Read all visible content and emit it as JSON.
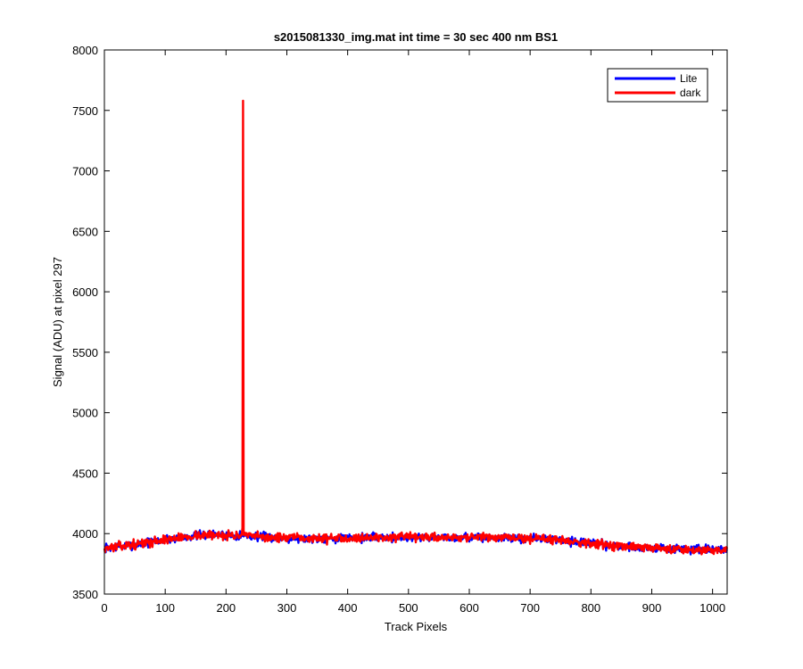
{
  "chart_data": {
    "type": "line",
    "title": "s2015081330_img.mat int time = 30 sec  400 nm BS1",
    "xlabel": "Track Pixels",
    "ylabel": "Signal (ADU) at pixel 297",
    "xlim": [
      0,
      1024
    ],
    "ylim": [
      3500,
      8000
    ],
    "xticks": [
      0,
      100,
      200,
      300,
      400,
      500,
      600,
      700,
      800,
      900,
      1000
    ],
    "yticks": [
      3500,
      4000,
      4500,
      5000,
      5500,
      6000,
      6500,
      7000,
      7500,
      8000
    ],
    "grid": false,
    "legend_position": "top-right",
    "baseline": {
      "x": [
        0,
        50,
        100,
        150,
        200,
        250,
        300,
        350,
        400,
        450,
        500,
        550,
        600,
        650,
        700,
        750,
        800,
        850,
        900,
        950,
        1000,
        1024
      ],
      "y": [
        3880,
        3910,
        3950,
        3985,
        3990,
        3975,
        3965,
        3960,
        3965,
        3968,
        3968,
        3970,
        3970,
        3965,
        3960,
        3950,
        3920,
        3895,
        3880,
        3870,
        3865,
        3865
      ]
    },
    "noise_amplitude": 30,
    "series": [
      {
        "name": "Lite",
        "color": "#0000ff",
        "spikes": [],
        "seed": 7
      },
      {
        "name": "dark",
        "color": "#ff0000",
        "spikes": [
          {
            "x": 227,
            "y": 4050
          },
          {
            "x": 228,
            "y": 7580
          },
          {
            "x": 229,
            "y": 3990
          }
        ],
        "seed": 13
      }
    ]
  }
}
